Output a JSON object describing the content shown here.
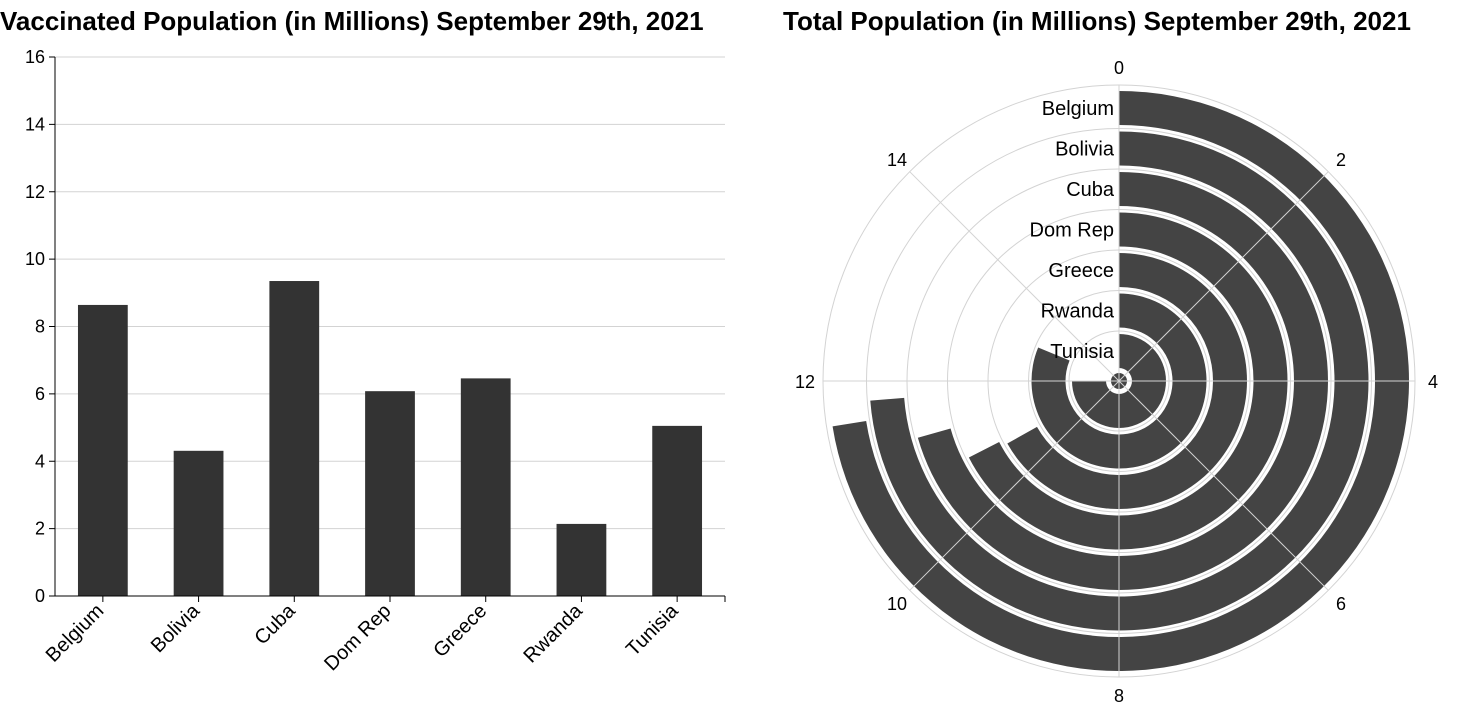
{
  "chart_data": [
    {
      "type": "bar",
      "title": "Vaccinated Population (in Millions) September 29th, 2021",
      "categories": [
        "Belgium",
        "Bolivia",
        "Cuba",
        "Dom Rep",
        "Greece",
        "Rwanda",
        "Tunisia"
      ],
      "values": [
        8.64,
        4.31,
        9.35,
        6.08,
        6.46,
        2.14,
        5.05
      ],
      "yticks": [
        "0",
        "2",
        "4",
        "6",
        "8",
        "10",
        "12",
        "14",
        "16"
      ],
      "ylim": [
        0,
        16
      ],
      "grid": true,
      "bar_color": "#333333"
    },
    {
      "type": "radial-bar",
      "title": "Total Population (in Millions) September 29th, 2021",
      "categories": [
        "Belgium",
        "Bolivia",
        "Cuba",
        "Dom Rep",
        "Greece",
        "Rwanda",
        "Tunisia"
      ],
      "values": [
        11.6,
        11.8,
        11.3,
        10.8,
        10.7,
        13.0,
        12.0
      ],
      "angular_ticks": [
        "0",
        "2",
        "4",
        "6",
        "8",
        "10",
        "12",
        "14"
      ],
      "angular_range": [
        0,
        16
      ],
      "grid": true,
      "bar_color": "#444444"
    }
  ]
}
